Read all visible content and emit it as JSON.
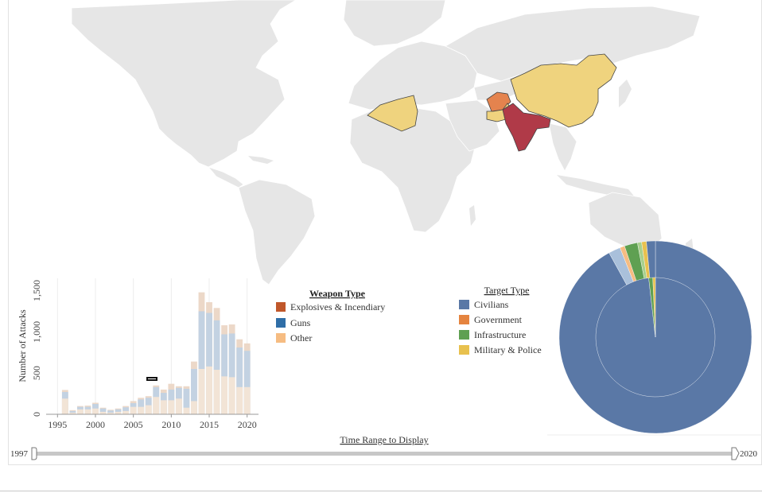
{
  "colors": {
    "land": "#e6e6e6",
    "highlight_red": "#b03a48",
    "highlight_orange": "#e4834e",
    "highlight_yellow": "#efd37e",
    "bar_top": "#c3d2e2",
    "bar_base": "#f2e4d6",
    "bar_cap": "#ecd8c8",
    "civilians": "#5a78a6",
    "government": "#e5843f",
    "infrastructure": "#5fa052",
    "military": "#e8c14e",
    "explosives": "#c0572a",
    "guns": "#2f6ea7",
    "other": "#f6bc82"
  },
  "weapon_legend": {
    "title": "Weapon Type",
    "items": [
      {
        "label": "Explosives & Incendiary",
        "color": "#c0572a"
      },
      {
        "label": "Guns",
        "color": "#2f6ea7"
      },
      {
        "label": "Other",
        "color": "#f6bc82"
      }
    ]
  },
  "target_legend": {
    "title": "Target Type",
    "items": [
      {
        "label": "Civilians",
        "color": "#5a78a6"
      },
      {
        "label": "Government",
        "color": "#e5843f"
      },
      {
        "label": "Infrastructure",
        "color": "#5fa052"
      },
      {
        "label": "Military & Police",
        "color": "#e8c14e"
      }
    ]
  },
  "slider": {
    "title": "Time Range to Display",
    "min_label": "1997",
    "max_label": "2020",
    "start": 1997,
    "end": 2020
  },
  "chart_data": [
    {
      "type": "bar",
      "ylabel": "Number of Attacks",
      "xlabel": "",
      "x_ticks": [
        "1995",
        "2000",
        "2005",
        "2010",
        "2015",
        "2020"
      ],
      "y_ticks": [
        "0",
        "500",
        "1,000",
        "1,500"
      ],
      "ylim": [
        0,
        1650
      ],
      "xlim": [
        1993.5,
        2021.5
      ],
      "series": [
        {
          "x": [
            1996,
            1997,
            1998,
            1999,
            2000,
            2001,
            2002,
            2003,
            2004,
            2005,
            2006,
            2007,
            2008,
            2009,
            2010,
            2011,
            2012,
            2013,
            2014,
            2015,
            2016,
            2017,
            2018,
            2019,
            2020
          ],
          "base": [
            190,
            20,
            60,
            60,
            70,
            30,
            20,
            30,
            40,
            90,
            90,
            110,
            210,
            170,
            170,
            190,
            80,
            160,
            550,
            580,
            540,
            460,
            450,
            330,
            330
          ],
          "top": [
            270,
            40,
            90,
            90,
            125,
            70,
            45,
            60,
            85,
            135,
            180,
            200,
            330,
            260,
            300,
            320,
            310,
            550,
            1250,
            1230,
            1140,
            970,
            980,
            810,
            770
          ],
          "cap": [
            295,
            50,
            100,
            105,
            140,
            80,
            55,
            70,
            100,
            160,
            200,
            220,
            350,
            300,
            370,
            340,
            340,
            640,
            1480,
            1360,
            1290,
            1080,
            1090,
            910,
            860
          ]
        }
      ]
    },
    {
      "type": "pie",
      "variant": "nested-donut",
      "outer": [
        {
          "label": "Civilians",
          "value": 92.0,
          "color": "#5a78a6"
        },
        {
          "label": "Civilians (light)",
          "value": 2.0,
          "color": "#a9c0db"
        },
        {
          "label": "Other",
          "value": 0.8,
          "color": "#f6bc82"
        },
        {
          "label": "Infrastructure",
          "value": 2.2,
          "color": "#5fa052"
        },
        {
          "label": "Light green",
          "value": 0.7,
          "color": "#a8d08d"
        },
        {
          "label": "Military & Police",
          "value": 0.8,
          "color": "#e8c14e"
        },
        {
          "label": "Civilians (dark)",
          "value": 1.5,
          "color": "#5a78a6"
        }
      ],
      "inner": [
        {
          "label": "Civilians",
          "value": 98.2,
          "color": "#5a78a6"
        },
        {
          "label": "Infrastructure",
          "value": 1.1,
          "color": "#5fa052"
        },
        {
          "label": "Military & Police",
          "value": 0.7,
          "color": "#e8c14e"
        }
      ]
    }
  ]
}
